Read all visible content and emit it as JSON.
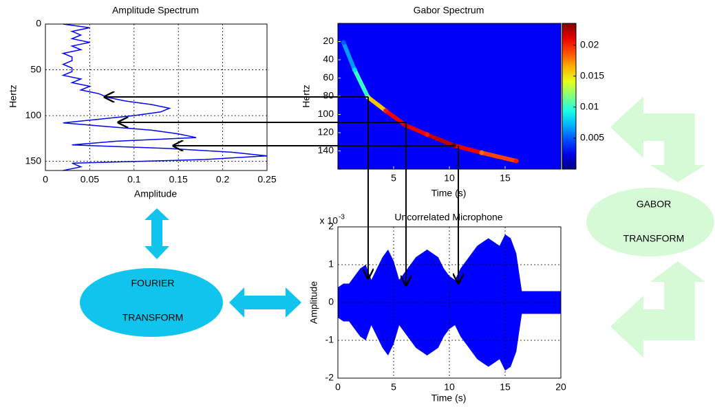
{
  "chart_data": [
    {
      "type": "line",
      "title": "Amplitude Spectrum",
      "x_label": "Amplitude",
      "y_label": "Hertz",
      "xlim": [
        0,
        0.25
      ],
      "xticks": [
        0,
        0.05,
        0.1,
        0.15,
        0.2,
        0.25
      ],
      "ylim": [
        0,
        160
      ],
      "yticks": [
        0,
        50,
        100,
        150
      ],
      "y_inverted": true,
      "grid": true,
      "color": "#0000ff",
      "y": [
        0,
        4,
        8,
        12,
        16,
        20,
        24,
        28,
        32,
        36,
        40,
        44,
        48,
        52,
        56,
        60,
        64,
        68,
        72,
        76,
        80,
        84,
        88,
        92,
        96,
        100,
        104,
        108,
        112,
        116,
        120,
        124,
        128,
        132,
        136,
        140,
        144,
        148,
        152,
        156,
        160
      ],
      "values": [
        0.02,
        0.05,
        0.03,
        0.04,
        0.03,
        0.05,
        0.03,
        0.04,
        0.02,
        0.03,
        0.03,
        0.02,
        0.03,
        0.03,
        0.02,
        0.04,
        0.03,
        0.05,
        0.04,
        0.06,
        0.07,
        0.09,
        0.12,
        0.14,
        0.13,
        0.1,
        0.06,
        0.02,
        0.07,
        0.12,
        0.15,
        0.17,
        0.08,
        0.03,
        0.14,
        0.21,
        0.25,
        0.18,
        0.03,
        0.04,
        0.02
      ]
    },
    {
      "type": "heatmap",
      "title": "Gabor Spectrum",
      "x_label": "Time (s)",
      "y_label": "Hertz",
      "xlim": [
        0,
        20
      ],
      "xticks": [
        5,
        10,
        15
      ],
      "ylim": [
        0,
        160
      ],
      "yticks": [
        20,
        40,
        60,
        80,
        100,
        120,
        140
      ],
      "y_inverted": true,
      "colormap": "jet",
      "clim": [
        0,
        0.0235
      ],
      "cticks": [
        0.005,
        0.01,
        0.015,
        0.02
      ],
      "x": [
        0.5,
        1.5,
        2.7,
        4.3,
        6.1,
        8,
        10.4,
        12.9,
        16
      ],
      "y": [
        21,
        51,
        81,
        96,
        112,
        122,
        134,
        142,
        151
      ],
      "values": [
        0.005,
        0.008,
        0.012,
        0.02,
        0.022,
        0.02,
        0.024,
        0.018,
        0.02
      ]
    },
    {
      "type": "area",
      "title": "Uncorrelated Microphone",
      "x_label": "Time (s)",
      "y_label": "Amplitude",
      "y_multiplier": {
        "base": "x 10",
        "exponent": "-3"
      },
      "symmetric": true,
      "color": "#0000ff",
      "xlim": [
        0,
        20
      ],
      "xticks": [
        0,
        5,
        10,
        15,
        20
      ],
      "ylim": [
        -2,
        2
      ],
      "yticks": [
        -2,
        -1,
        0,
        1,
        2
      ],
      "grid": true,
      "x": [
        0,
        0.5,
        1,
        1.5,
        2,
        2.5,
        3,
        3.5,
        4,
        4.5,
        5,
        5.5,
        6,
        6.5,
        7,
        7.5,
        8,
        8.5,
        9,
        9.5,
        10,
        10.5,
        11,
        11.5,
        12,
        12.5,
        13,
        13.5,
        14,
        14.5,
        15,
        15.5,
        16,
        16.5,
        17,
        17.5,
        18,
        18.5,
        19,
        19.5,
        20
      ],
      "values": [
        0.4,
        0.5,
        0.5,
        0.7,
        0.9,
        1.0,
        0.6,
        0.9,
        1.2,
        1.4,
        1.1,
        0.6,
        0.8,
        1.0,
        1.2,
        1.3,
        1.4,
        1.3,
        1.2,
        0.9,
        0.7,
        0.6,
        0.9,
        1.1,
        1.3,
        1.5,
        1.6,
        1.7,
        1.6,
        1.5,
        1.8,
        1.7,
        1.3,
        0.3,
        0.3,
        0.3,
        0.3,
        0.3,
        0.3,
        0.3,
        0.3
      ]
    }
  ],
  "diagram": {
    "fourier": [
      "FOURIER",
      "TRANSFORM"
    ],
    "gabor": [
      "GABOR",
      "TRANSFORM"
    ]
  }
}
